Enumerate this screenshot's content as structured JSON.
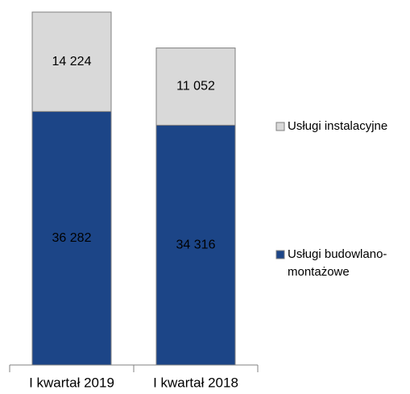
{
  "chart_data": {
    "type": "stacked-bar",
    "categories": [
      "I kwartał 2019",
      "I kwartał 2018"
    ],
    "series": [
      {
        "name": "Usługi budowlano-montażowe",
        "color": "#1c4587",
        "values": [
          36282,
          34316
        ],
        "value_labels": [
          "36 282",
          "34 316"
        ]
      },
      {
        "name": "Usługi instalacyjne",
        "color": "#d9d9d9",
        "values": [
          14224,
          11052
        ],
        "value_labels": [
          "14 224",
          "11 052"
        ]
      }
    ]
  }
}
